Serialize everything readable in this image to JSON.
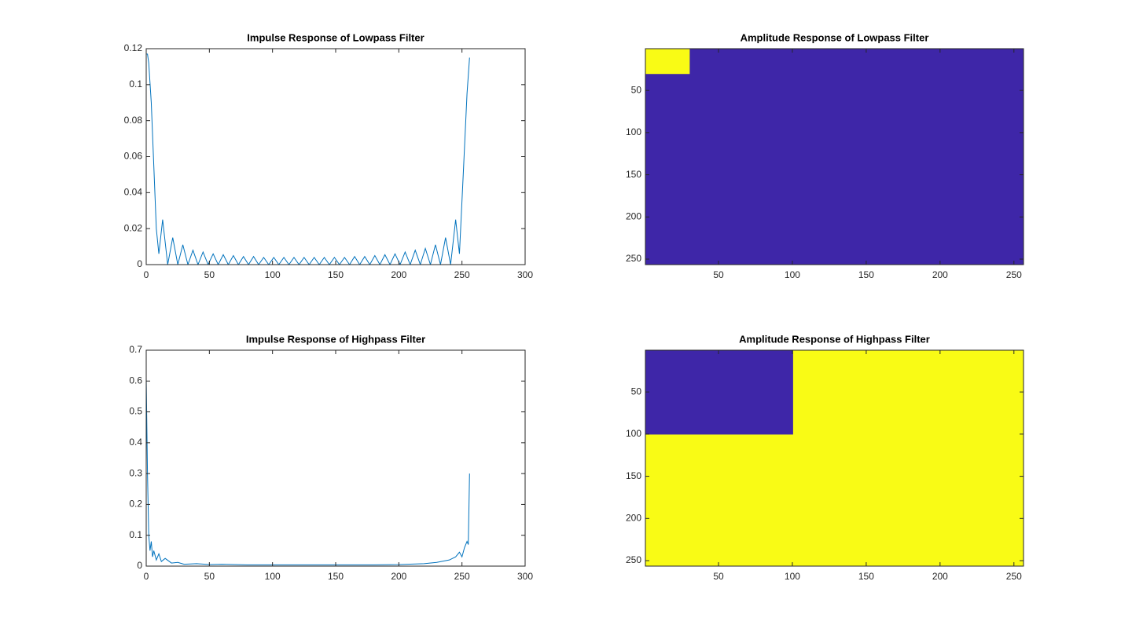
{
  "chart_data": [
    {
      "type": "line",
      "title": "Impulse Response of Lowpass Filter",
      "color": "#0072bd",
      "x": [
        0,
        1,
        2,
        4,
        6,
        8,
        10,
        13,
        17,
        21,
        25,
        29,
        33,
        37,
        41,
        45,
        49,
        53,
        57,
        61,
        65,
        69,
        73,
        77,
        81,
        85,
        89,
        93,
        97,
        101,
        105,
        109,
        113,
        117,
        121,
        125,
        129,
        133,
        137,
        141,
        145,
        149,
        153,
        157,
        161,
        165,
        169,
        173,
        177,
        181,
        185,
        189,
        193,
        197,
        201,
        205,
        209,
        213,
        217,
        221,
        225,
        229,
        233,
        237,
        241,
        245,
        248,
        251,
        254,
        256
      ],
      "values": [
        0.117,
        0.117,
        0.112,
        0.09,
        0.055,
        0.02,
        0.006,
        0.025,
        0,
        0.015,
        0,
        0.011,
        0,
        0.008,
        0,
        0.007,
        0,
        0.006,
        0,
        0.0055,
        0,
        0.005,
        0,
        0.0045,
        0,
        0.0045,
        0,
        0.004,
        0,
        0.004,
        0,
        0.004,
        0,
        0.004,
        0,
        0.004,
        0,
        0.004,
        0,
        0.004,
        0,
        0.004,
        0,
        0.004,
        0,
        0.0045,
        0,
        0.0045,
        0,
        0.005,
        0,
        0.0055,
        0,
        0.006,
        0,
        0.007,
        0,
        0.008,
        0,
        0.009,
        0,
        0.011,
        0,
        0.015,
        0,
        0.025,
        0.006,
        0.05,
        0.095,
        0.115
      ],
      "xlim": [
        0,
        300
      ],
      "xticks": [
        0,
        50,
        100,
        150,
        200,
        250,
        300
      ],
      "ylim": [
        0,
        0.12
      ],
      "yticks": [
        0,
        0.02,
        0.04,
        0.06,
        0.08,
        0.1,
        0.12
      ]
    },
    {
      "type": "image",
      "title": "Amplitude Response of Lowpass Filter",
      "colormap": [
        "#3e26a8",
        "#f9fb15"
      ],
      "blocks": [
        {
          "x": [
            0.5,
            256.5
          ],
          "y": [
            0.5,
            256.5
          ],
          "value": 0
        },
        {
          "x": [
            0.5,
            30.5
          ],
          "y": [
            0.5,
            30.5
          ],
          "value": 1
        }
      ],
      "xlim": [
        0.5,
        256.5
      ],
      "xticks": [
        50,
        100,
        150,
        200,
        250
      ],
      "ylim": [
        0.5,
        256.5
      ],
      "yticks": [
        50,
        100,
        150,
        200,
        250
      ]
    },
    {
      "type": "line",
      "title": "Impulse Response of Highpass Filter",
      "color": "#0072bd",
      "x": [
        0,
        1,
        2,
        3,
        4,
        5,
        6,
        8,
        10,
        12,
        15,
        20,
        25,
        30,
        40,
        50,
        60,
        80,
        100,
        128,
        150,
        180,
        200,
        220,
        230,
        240,
        245,
        248,
        250,
        252,
        254,
        255,
        256
      ],
      "values": [
        0.61,
        0.3,
        0.1,
        0.05,
        0.08,
        0.03,
        0.05,
        0.02,
        0.04,
        0.015,
        0.025,
        0.01,
        0.012,
        0.006,
        0.008,
        0.005,
        0.006,
        0.004,
        0.004,
        0.004,
        0.004,
        0.004,
        0.005,
        0.008,
        0.012,
        0.02,
        0.03,
        0.045,
        0.03,
        0.06,
        0.08,
        0.07,
        0.3
      ],
      "xlim": [
        0,
        300
      ],
      "xticks": [
        0,
        50,
        100,
        150,
        200,
        250,
        300
      ],
      "ylim": [
        0,
        0.7
      ],
      "yticks": [
        0,
        0.1,
        0.2,
        0.3,
        0.4,
        0.5,
        0.6,
        0.7
      ]
    },
    {
      "type": "image",
      "title": "Amplitude Response of Highpass Filter",
      "colormap": [
        "#3e26a8",
        "#f9fb15"
      ],
      "blocks": [
        {
          "x": [
            0.5,
            256.5
          ],
          "y": [
            0.5,
            256.5
          ],
          "value": 1
        },
        {
          "x": [
            0.5,
            100.5
          ],
          "y": [
            0.5,
            100.5
          ],
          "value": 0
        }
      ],
      "xlim": [
        0.5,
        256.5
      ],
      "xticks": [
        50,
        100,
        150,
        200,
        250
      ],
      "ylim": [
        0.5,
        256.5
      ],
      "yticks": [
        50,
        100,
        150,
        200,
        250
      ]
    }
  ]
}
